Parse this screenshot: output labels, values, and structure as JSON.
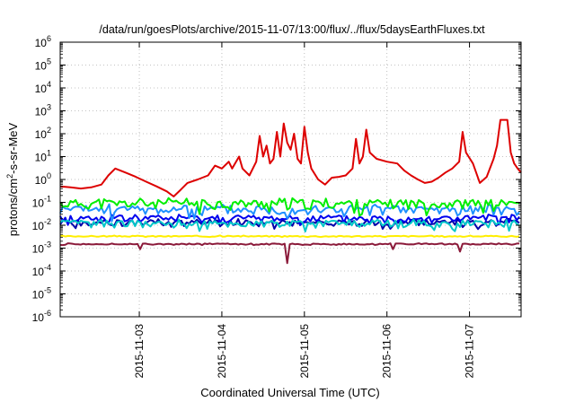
{
  "chart_data": {
    "type": "line",
    "title": "/data/run/goesPlots/archive/2015-11-07/13:00/flux/../flux/5daysEarthFluxes.txt",
    "xlabel": "Coordinated Universal Time (UTC)",
    "ylabel_main": "protons/cm",
    "ylabel_sup": "2",
    "ylabel_rest": "-s-sr-MeV",
    "x_scale": "time",
    "xlim": [
      "2015-11-02T01:00",
      "2015-11-07T15:00"
    ],
    "x_ticks": [
      "2015-11-03",
      "2015-11-04",
      "2015-11-05",
      "2015-11-06",
      "2015-11-07"
    ],
    "y_scale": "log",
    "ylim": [
      1e-06,
      1000000.0
    ],
    "y_ticks": [
      {
        "value": 1e-06,
        "base": "10",
        "exp": "-6"
      },
      {
        "value": 1e-05,
        "base": "10",
        "exp": "-5"
      },
      {
        "value": 0.0001,
        "base": "10",
        "exp": "-4"
      },
      {
        "value": 0.001,
        "base": "10",
        "exp": "-3"
      },
      {
        "value": 0.01,
        "base": "10",
        "exp": "-2"
      },
      {
        "value": 0.1,
        "base": "10",
        "exp": "-1"
      },
      {
        "value": 1,
        "base": "10",
        "exp": "0"
      },
      {
        "value": 10,
        "base": "10",
        "exp": "1"
      },
      {
        "value": 100,
        "base": "10",
        "exp": "2"
      },
      {
        "value": 1000,
        "base": "10",
        "exp": "3"
      },
      {
        "value": 10000,
        "base": "10",
        "exp": "4"
      },
      {
        "value": 100000,
        "base": "10",
        "exp": "5"
      },
      {
        "value": 1000000,
        "base": "10",
        "exp": "6"
      }
    ],
    "grid": true,
    "legend": "none",
    "series": [
      {
        "color": "#dd0000",
        "points": [
          [
            "2015-11-02T01:00",
            0.5
          ],
          [
            "2015-11-02T04:00",
            0.45
          ],
          [
            "2015-11-02T07:00",
            0.4
          ],
          [
            "2015-11-02T10:00",
            0.45
          ],
          [
            "2015-11-02T13:00",
            0.6
          ],
          [
            "2015-11-02T15:00",
            1.5
          ],
          [
            "2015-11-02T17:00",
            3
          ],
          [
            "2015-11-02T20:00",
            2
          ],
          [
            "2015-11-02T23:00",
            1.3
          ],
          [
            "2015-11-03T02:00",
            0.8
          ],
          [
            "2015-11-03T05:00",
            0.5
          ],
          [
            "2015-11-03T08:00",
            0.3
          ],
          [
            "2015-11-03T10:00",
            0.18
          ],
          [
            "2015-11-03T12:00",
            0.35
          ],
          [
            "2015-11-03T14:00",
            0.7
          ],
          [
            "2015-11-03T17:00",
            1.0
          ],
          [
            "2015-11-03T20:00",
            1.5
          ],
          [
            "2015-11-03T22:00",
            4
          ],
          [
            "2015-11-04T00:00",
            3
          ],
          [
            "2015-11-04T02:00",
            6
          ],
          [
            "2015-11-04T03:00",
            3
          ],
          [
            "2015-11-04T05:00",
            10
          ],
          [
            "2015-11-04T06:00",
            3
          ],
          [
            "2015-11-04T08:00",
            1.5
          ],
          [
            "2015-11-04T10:00",
            6
          ],
          [
            "2015-11-04T11:00",
            80
          ],
          [
            "2015-11-04T12:00",
            10
          ],
          [
            "2015-11-04T13:00",
            30
          ],
          [
            "2015-11-04T14:00",
            5
          ],
          [
            "2015-11-04T15:00",
            8
          ],
          [
            "2015-11-04T16:00",
            120
          ],
          [
            "2015-11-04T17:00",
            10
          ],
          [
            "2015-11-04T18:00",
            280
          ],
          [
            "2015-11-04T19:00",
            40
          ],
          [
            "2015-11-04T20:00",
            20
          ],
          [
            "2015-11-04T21:00",
            100
          ],
          [
            "2015-11-04T22:00",
            8
          ],
          [
            "2015-11-04T23:00",
            5
          ],
          [
            "2015-11-05T00:00",
            200
          ],
          [
            "2015-11-05T01:00",
            15
          ],
          [
            "2015-11-05T02:00",
            3
          ],
          [
            "2015-11-05T04:00",
            1.0
          ],
          [
            "2015-11-05T06:00",
            0.6
          ],
          [
            "2015-11-05T08:00",
            1.2
          ],
          [
            "2015-11-05T10:00",
            1.3
          ],
          [
            "2015-11-05T12:00",
            1.5
          ],
          [
            "2015-11-05T14:00",
            3
          ],
          [
            "2015-11-05T15:00",
            60
          ],
          [
            "2015-11-05T16:00",
            5
          ],
          [
            "2015-11-05T17:00",
            10
          ],
          [
            "2015-11-05T18:00",
            150
          ],
          [
            "2015-11-05T19:00",
            15
          ],
          [
            "2015-11-05T21:00",
            8
          ],
          [
            "2015-11-06T00:00",
            6
          ],
          [
            "2015-11-06T03:00",
            5
          ],
          [
            "2015-11-06T05:00",
            2.5
          ],
          [
            "2015-11-06T07:00",
            1.5
          ],
          [
            "2015-11-06T09:00",
            1.0
          ],
          [
            "2015-11-06T11:00",
            0.7
          ],
          [
            "2015-11-06T13:00",
            0.8
          ],
          [
            "2015-11-06T15:00",
            1.2
          ],
          [
            "2015-11-06T17:00",
            2
          ],
          [
            "2015-11-06T19:00",
            3
          ],
          [
            "2015-11-06T21:00",
            6
          ],
          [
            "2015-11-06T22:00",
            120
          ],
          [
            "2015-11-06T23:00",
            15
          ],
          [
            "2015-11-07T01:00",
            5
          ],
          [
            "2015-11-07T03:00",
            0.7
          ],
          [
            "2015-11-07T05:00",
            1.3
          ],
          [
            "2015-11-07T07:00",
            8
          ],
          [
            "2015-11-07T08:00",
            30
          ],
          [
            "2015-11-07T09:00",
            400
          ],
          [
            "2015-11-07T11:00",
            400
          ],
          [
            "2015-11-07T12:00",
            15
          ],
          [
            "2015-11-07T13:00",
            5
          ],
          [
            "2015-11-07T14:00",
            3
          ],
          [
            "2015-11-07T15:00",
            2
          ]
        ]
      },
      {
        "color": "#00ee00",
        "base": 0.09,
        "amp": 0.45,
        "seed": 11
      },
      {
        "color": "#1e90ff",
        "base": 0.05,
        "amp": 0.45,
        "seed": 23
      },
      {
        "color": "#00c8c8",
        "base": 0.012,
        "amp": 0.35,
        "seed": 37
      },
      {
        "color": "#0000ee",
        "base": 0.02,
        "amp": 0.35,
        "seed": 41
      },
      {
        "color": "#0000aa",
        "base": 0.013,
        "amp": 0.3,
        "seed": 53
      },
      {
        "color": "#ffee00",
        "base": 0.0033,
        "amp": 0.05,
        "seed": 67
      },
      {
        "color": "#8b1a3a",
        "base": 0.0015,
        "amp": 0.06,
        "seed": 71,
        "dips": [
          [
            "2015-11-04T19:00",
            0.00022
          ],
          [
            "2015-11-03T00:00",
            0.0009
          ],
          [
            "2015-11-06T21:00",
            0.0007
          ],
          [
            "2015-11-06T02:00",
            0.0009
          ]
        ]
      }
    ]
  }
}
